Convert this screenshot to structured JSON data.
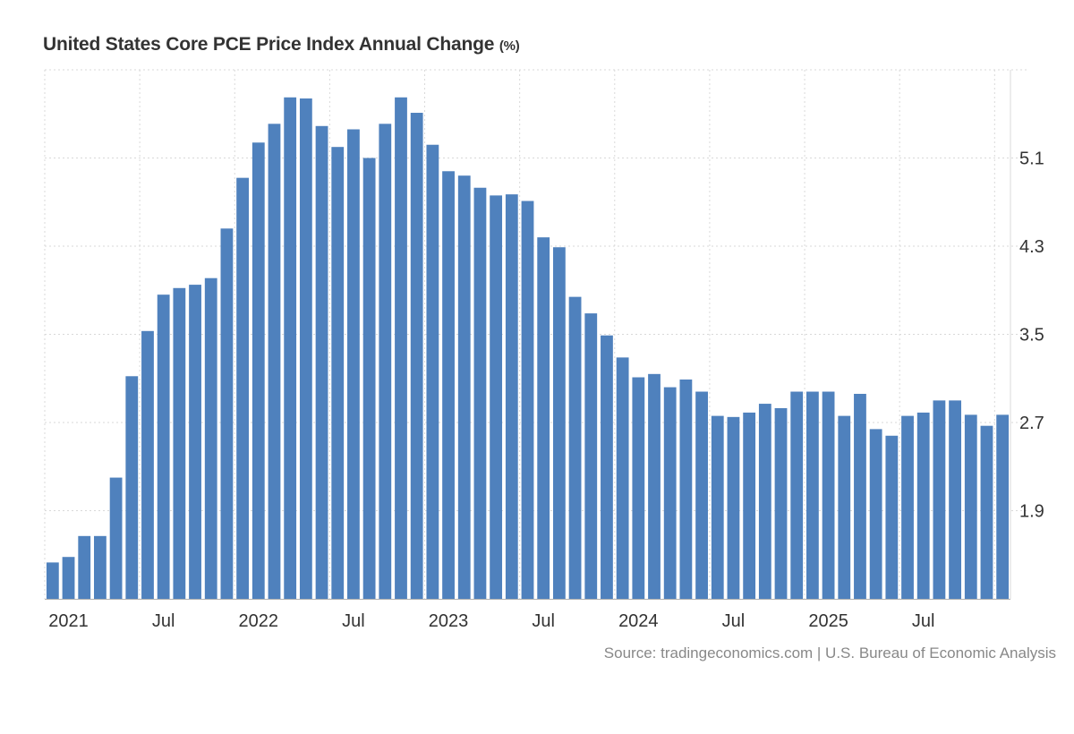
{
  "chart_data": {
    "type": "bar",
    "title": "United States Core PCE Price Index Annual Change",
    "unit_label": "(%)",
    "source": "Source: tradingeconomics.com | U.S. Bureau of Economic Analysis",
    "xlabel": "",
    "ylabel": "",
    "ylim": [
      1.1,
      5.9
    ],
    "y_ticks": [
      1.9,
      2.7,
      3.5,
      4.3,
      5.1
    ],
    "y_tick_labels": [
      "1.9",
      "2.7",
      "3.5",
      "4.3",
      "5.1"
    ],
    "x_tick_labels": [
      {
        "label": "2021",
        "index": 1.5
      },
      {
        "label": "Jul",
        "index": 7.5
      },
      {
        "label": "2022",
        "index": 13.5
      },
      {
        "label": "Jul",
        "index": 19.5
      },
      {
        "label": "2023",
        "index": 25.5
      },
      {
        "label": "Jul",
        "index": 31.5
      },
      {
        "label": "2024",
        "index": 37.5
      },
      {
        "label": "Jul",
        "index": 43.5
      },
      {
        "label": "2025",
        "index": 49.5
      },
      {
        "label": "Jul",
        "index": 55.5
      }
    ],
    "x_grid_indices": [
      0,
      6,
      12,
      18,
      24,
      30,
      36,
      42,
      48,
      54,
      60
    ],
    "color": "#4f81bd",
    "values": [
      1.43,
      1.48,
      1.67,
      1.67,
      2.2,
      3.12,
      3.53,
      3.86,
      3.92,
      3.95,
      4.01,
      4.46,
      4.92,
      5.24,
      5.41,
      5.65,
      5.64,
      5.39,
      5.2,
      5.36,
      5.1,
      5.41,
      5.65,
      5.51,
      5.22,
      4.98,
      4.94,
      4.83,
      4.76,
      4.77,
      4.71,
      4.38,
      4.29,
      3.84,
      3.69,
      3.49,
      3.29,
      3.11,
      3.14,
      3.02,
      3.09,
      2.98,
      2.76,
      2.75,
      2.79,
      2.87,
      2.83,
      2.98,
      2.98,
      2.98,
      2.76,
      2.96,
      2.64,
      2.58,
      2.76,
      2.79,
      2.9,
      2.9,
      2.77,
      2.67,
      2.77
    ]
  }
}
